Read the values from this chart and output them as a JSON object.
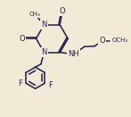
{
  "bg_color": "#f0ead6",
  "line_color": "#2a2550",
  "line_width": 1.15,
  "font_size": 6.0,
  "xlim": [
    -0.05,
    1.05
  ],
  "ylim": [
    -0.18,
    0.95
  ]
}
